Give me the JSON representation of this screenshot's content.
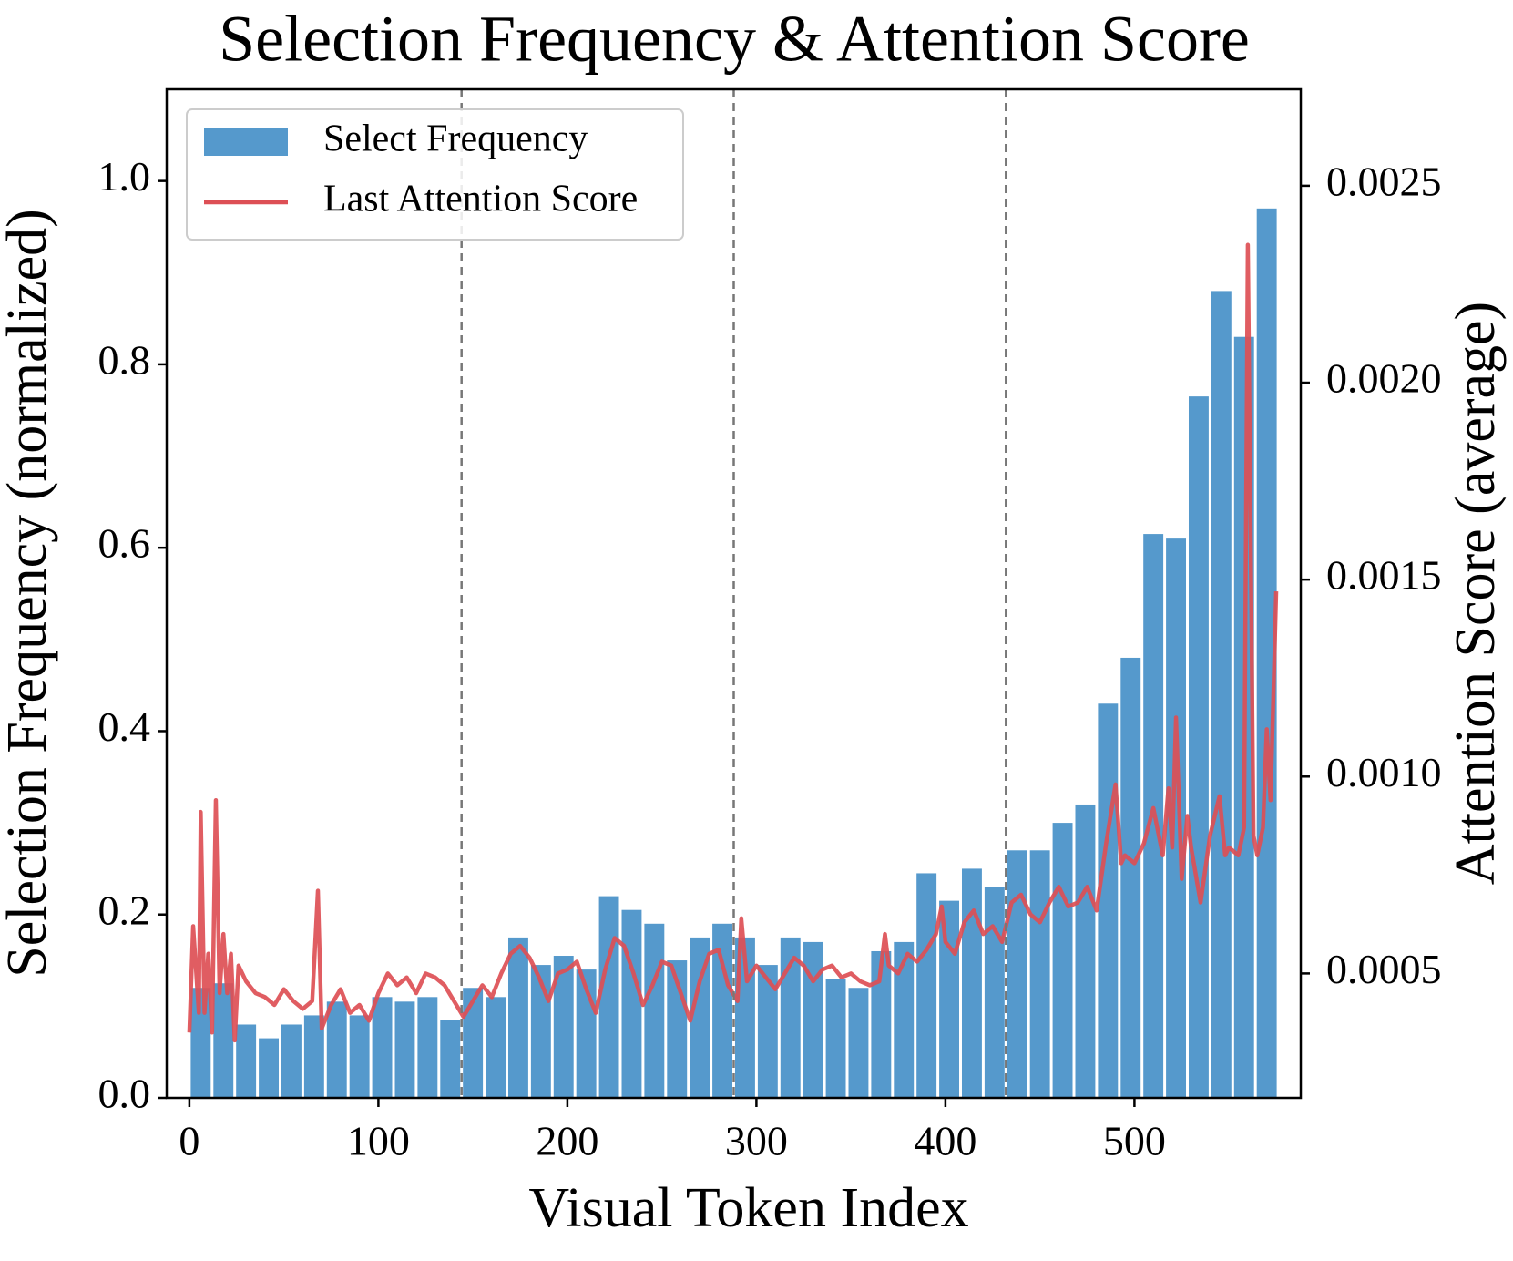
{
  "chart_data": {
    "type": "bar",
    "title": "Selection Frequency & Attention Score",
    "x_label": "Visual Token Index",
    "y_label": "Selection Frequency (normalized)",
    "y2_label": "Attention Score (average)",
    "xlim": [
      -12,
      588
    ],
    "ylim": [
      0,
      1.1
    ],
    "y2lim": [
      0.000184,
      0.002745
    ],
    "xticks": [
      0,
      100,
      200,
      300,
      400,
      500
    ],
    "yticks": [
      {
        "value": 0,
        "label": "0.0"
      },
      0.2,
      0.4,
      0.6,
      0.8,
      {
        "value": 1,
        "label": "1.0"
      }
    ],
    "y2ticks": [
      0.0005,
      {
        "value": 0.001,
        "label": "0.0010"
      },
      0.0015,
      {
        "value": 0.002,
        "label": "0.0020"
      },
      0.0025
    ],
    "vlines": [
      144,
      288,
      432
    ],
    "grid": false,
    "legend": "upper left",
    "series": [
      {
        "name": "Select Frequency",
        "type": "bar",
        "color": "#5599cc",
        "x": [
          6,
          18,
          30,
          42,
          54,
          66,
          78,
          90,
          102,
          114,
          126,
          138,
          150,
          162,
          174,
          186,
          198,
          210,
          222,
          234,
          246,
          258,
          270,
          282,
          294,
          306,
          318,
          330,
          342,
          354,
          366,
          378,
          390,
          402,
          414,
          426,
          438,
          450,
          462,
          474,
          486,
          498,
          510,
          522,
          534,
          546,
          558,
          570
        ],
        "values": [
          0.12,
          0.125,
          0.08,
          0.065,
          0.08,
          0.09,
          0.105,
          0.09,
          0.11,
          0.105,
          0.11,
          0.085,
          0.12,
          0.11,
          0.175,
          0.145,
          0.155,
          0.14,
          0.22,
          0.205,
          0.19,
          0.15,
          0.175,
          0.19,
          0.175,
          0.145,
          0.175,
          0.17,
          0.13,
          0.12,
          0.16,
          0.17,
          0.245,
          0.215,
          0.25,
          0.23,
          0.27,
          0.27,
          0.3,
          0.32,
          0.43,
          0.48,
          0.615,
          0.61,
          0.765,
          0.88,
          0.83,
          0.97
        ]
      },
      {
        "name": "Last Attention Score",
        "type": "line",
        "axis": "y2",
        "color": "#dd4f55",
        "x": [
          0,
          2,
          5,
          6,
          8,
          10,
          12,
          14,
          16,
          18,
          20,
          22,
          24,
          26,
          30,
          35,
          40,
          45,
          50,
          55,
          60,
          65,
          68,
          70,
          75,
          80,
          85,
          90,
          95,
          100,
          105,
          110,
          115,
          120,
          125,
          130,
          135,
          140,
          145,
          150,
          155,
          160,
          165,
          170,
          175,
          180,
          185,
          190,
          195,
          200,
          205,
          210,
          215,
          220,
          225,
          230,
          235,
          240,
          245,
          250,
          255,
          260,
          265,
          270,
          275,
          280,
          285,
          290,
          292,
          295,
          300,
          305,
          310,
          315,
          320,
          325,
          330,
          335,
          340,
          345,
          350,
          355,
          360,
          365,
          368,
          370,
          375,
          380,
          385,
          390,
          395,
          398,
          400,
          405,
          410,
          415,
          420,
          425,
          430,
          435,
          440,
          445,
          450,
          455,
          460,
          465,
          470,
          475,
          480,
          485,
          490,
          493,
          495,
          500,
          505,
          510,
          515,
          518,
          520,
          522,
          525,
          528,
          530,
          535,
          540,
          545,
          548,
          550,
          555,
          558,
          560,
          563,
          565,
          568,
          570,
          572,
          575
        ],
        "values": [
          0.00035,
          0.00062,
          0.0004,
          0.00091,
          0.0004,
          0.00055,
          0.00035,
          0.00094,
          0.00045,
          0.0006,
          0.00045,
          0.00055,
          0.00033,
          0.00052,
          0.00048,
          0.00045,
          0.00044,
          0.00042,
          0.00046,
          0.00043,
          0.00041,
          0.00043,
          0.00071,
          0.00036,
          0.00042,
          0.00046,
          0.0004,
          0.00042,
          0.00038,
          0.00045,
          0.0005,
          0.00047,
          0.00049,
          0.00045,
          0.0005,
          0.00049,
          0.00047,
          0.00043,
          0.00039,
          0.00043,
          0.00047,
          0.00044,
          0.0005,
          0.00055,
          0.00057,
          0.00054,
          0.00049,
          0.00043,
          0.0005,
          0.00051,
          0.00053,
          0.00046,
          0.0004,
          0.00051,
          0.00059,
          0.00057,
          0.0005,
          0.00042,
          0.00047,
          0.00053,
          0.00052,
          0.00045,
          0.00038,
          0.00048,
          0.00055,
          0.00056,
          0.00047,
          0.00043,
          0.00064,
          0.00048,
          0.00052,
          0.00049,
          0.00046,
          0.0005,
          0.00054,
          0.00052,
          0.00048,
          0.00051,
          0.00052,
          0.00049,
          0.0005,
          0.00048,
          0.00047,
          0.00048,
          0.0006,
          0.00052,
          0.0005,
          0.00055,
          0.00053,
          0.00056,
          0.0006,
          0.00067,
          0.00058,
          0.00055,
          0.00063,
          0.00066,
          0.0006,
          0.00062,
          0.00058,
          0.00068,
          0.0007,
          0.00065,
          0.00063,
          0.00068,
          0.00072,
          0.00067,
          0.00068,
          0.00072,
          0.00066,
          0.00083,
          0.00098,
          0.00078,
          0.0008,
          0.00078,
          0.00083,
          0.00092,
          0.0008,
          0.00097,
          0.00082,
          0.00115,
          0.00074,
          0.0009,
          0.00082,
          0.00068,
          0.00085,
          0.00095,
          0.0008,
          0.00082,
          0.0008,
          0.00087,
          0.00235,
          0.00085,
          0.0008,
          0.00087,
          0.00112,
          0.00094,
          0.00147
        ]
      }
    ]
  }
}
